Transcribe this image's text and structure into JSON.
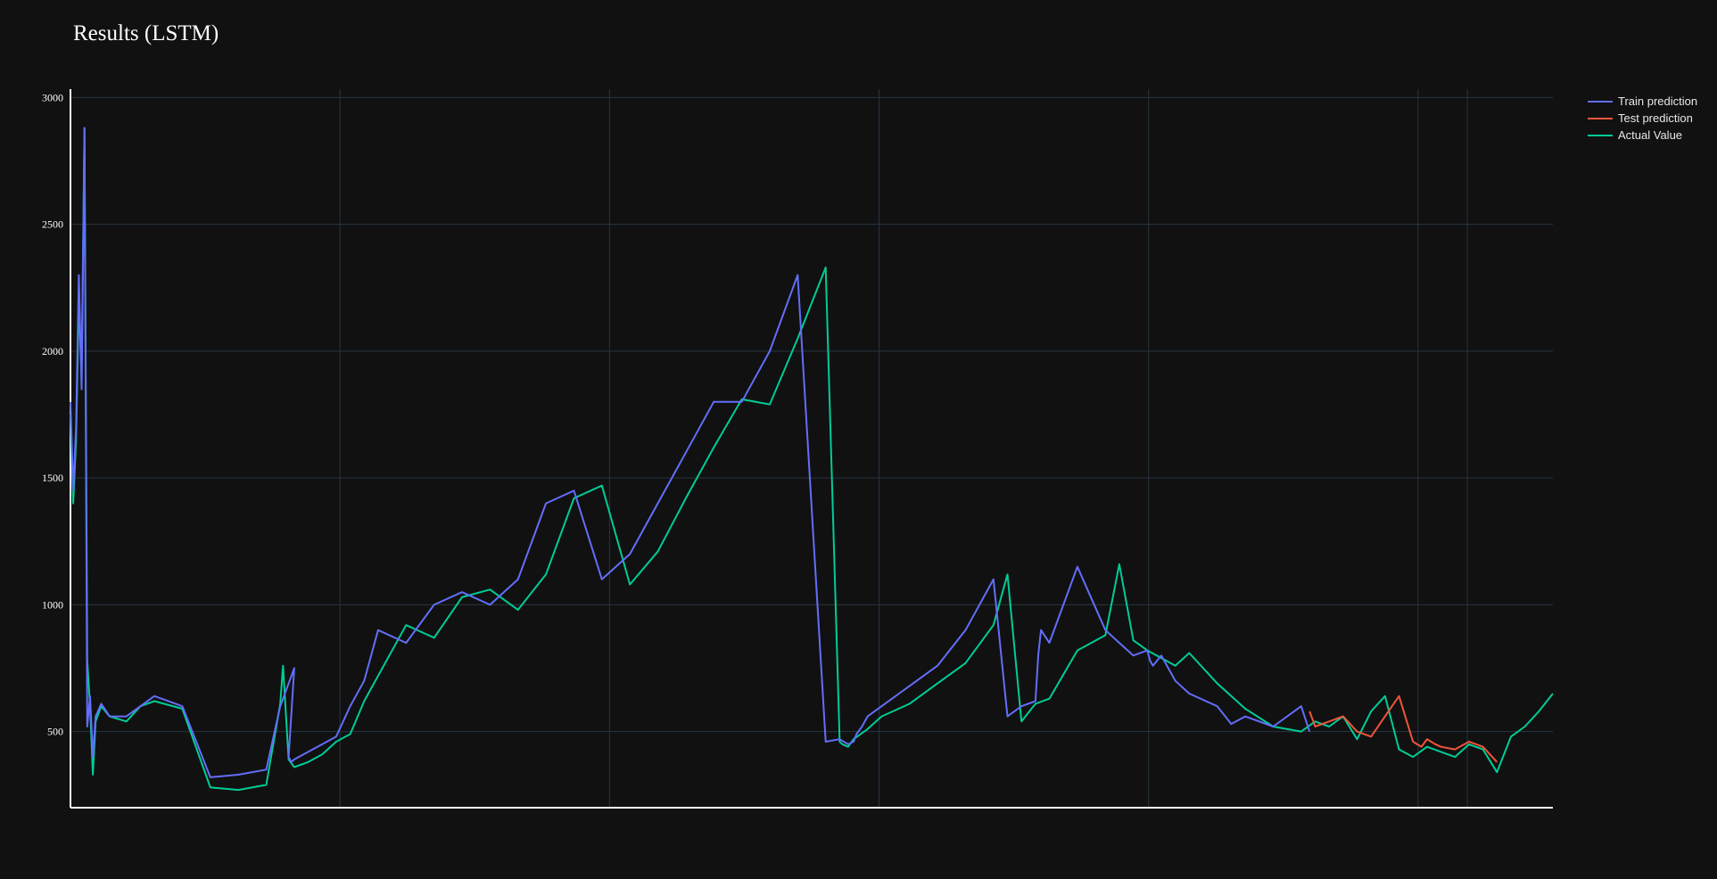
{
  "chart_data": {
    "type": "line",
    "title": "Results (LSTM)",
    "xlabel": "",
    "ylabel": "",
    "x_range": [
      0,
      5300
    ],
    "ylim": [
      200,
      3033
    ],
    "y_ticks": [
      500,
      1000,
      1500,
      2000,
      2500,
      3000
    ],
    "grid": true,
    "legend_position": "top-right",
    "colors": {
      "background": "#111111",
      "grid": "#283442",
      "axis": "#ffffff",
      "train": "#636efa",
      "test": "#ef553b",
      "actual": "#00cc96"
    },
    "series": [
      {
        "name": "Train prediction",
        "color": "#636efa",
        "x": [
          0,
          10,
          20,
          30,
          40,
          50,
          60,
          70,
          80,
          90,
          110,
          140,
          200,
          250,
          300,
          400,
          500,
          600,
          700,
          750,
          800,
          780,
          790,
          800,
          850,
          900,
          950,
          1000,
          1050,
          1100,
          1200,
          1300,
          1400,
          1500,
          1600,
          1700,
          1800,
          1900,
          2000,
          2100,
          2200,
          2300,
          2400,
          2500,
          2600,
          2700,
          2750,
          2780,
          2800,
          2810,
          2830,
          2850,
          2900,
          3000,
          3100,
          3200,
          3300,
          3350,
          3400,
          3450,
          3460,
          3470,
          3500,
          3600,
          3700,
          3750,
          3800,
          3850,
          3860,
          3870,
          3900,
          3950,
          4000,
          4100,
          4150,
          4200,
          4300,
          4400,
          4430
        ],
        "y": [
          1800,
          1450,
          1700,
          2300,
          1850,
          2880,
          520,
          640,
          400,
          560,
          610,
          560,
          560,
          600,
          640,
          600,
          320,
          330,
          350,
          600,
          750,
          400,
          380,
          390,
          420,
          450,
          480,
          600,
          700,
          900,
          850,
          1000,
          1050,
          1000,
          1100,
          1400,
          1450,
          1100,
          1200,
          1400,
          1600,
          1800,
          1800,
          2000,
          2300,
          460,
          470,
          450,
          460,
          490,
          520,
          560,
          600,
          680,
          760,
          900,
          1100,
          560,
          600,
          620,
          800,
          900,
          850,
          1150,
          900,
          850,
          800,
          820,
          780,
          760,
          800,
          700,
          650,
          600,
          530,
          560,
          520,
          600,
          500
        ]
      },
      {
        "name": "Test prediction",
        "color": "#ef553b",
        "x": [
          4430,
          4450,
          4500,
          4550,
          4600,
          4650,
          4700,
          4750,
          4800,
          4830,
          4850,
          4880,
          4900,
          4950,
          5000,
          5050,
          5100
        ],
        "y": [
          580,
          520,
          540,
          560,
          500,
          480,
          560,
          640,
          460,
          440,
          470,
          450,
          440,
          430,
          460,
          440,
          380
        ]
      },
      {
        "name": "Actual Value",
        "color": "#00cc96",
        "x": [
          0,
          10,
          20,
          30,
          40,
          50,
          60,
          70,
          80,
          90,
          110,
          140,
          200,
          250,
          300,
          400,
          500,
          600,
          700,
          750,
          760,
          780,
          800,
          850,
          900,
          950,
          1000,
          1050,
          1100,
          1200,
          1300,
          1400,
          1500,
          1600,
          1700,
          1800,
          1900,
          2000,
          2100,
          2200,
          2300,
          2400,
          2500,
          2600,
          2700,
          2750,
          2760,
          2780,
          2800,
          2850,
          2900,
          3000,
          3100,
          3200,
          3300,
          3350,
          3400,
          3450,
          3500,
          3600,
          3700,
          3750,
          3800,
          3850,
          3900,
          3950,
          4000,
          4100,
          4150,
          4200,
          4300,
          4400,
          4450,
          4500,
          4550,
          4600,
          4650,
          4700,
          4750,
          4800,
          4850,
          4900,
          4950,
          5000,
          5050,
          5100,
          5150,
          5200,
          5250,
          5300
        ],
        "y": [
          1750,
          1400,
          1650,
          2200,
          1900,
          2880,
          780,
          600,
          330,
          540,
          600,
          560,
          540,
          600,
          620,
          590,
          280,
          270,
          290,
          610,
          760,
          390,
          360,
          380,
          410,
          460,
          490,
          620,
          720,
          920,
          870,
          1030,
          1060,
          980,
          1120,
          1420,
          1470,
          1080,
          1210,
          1420,
          1620,
          1810,
          1790,
          2050,
          2330,
          460,
          450,
          440,
          470,
          510,
          560,
          610,
          690,
          770,
          920,
          1120,
          540,
          610,
          630,
          820,
          880,
          1160,
          860,
          820,
          790,
          760,
          810,
          690,
          640,
          590,
          520,
          500,
          540,
          520,
          560,
          470,
          580,
          640,
          430,
          400,
          440,
          420,
          400,
          450,
          430,
          340,
          480,
          520,
          580,
          650
        ]
      }
    ]
  }
}
